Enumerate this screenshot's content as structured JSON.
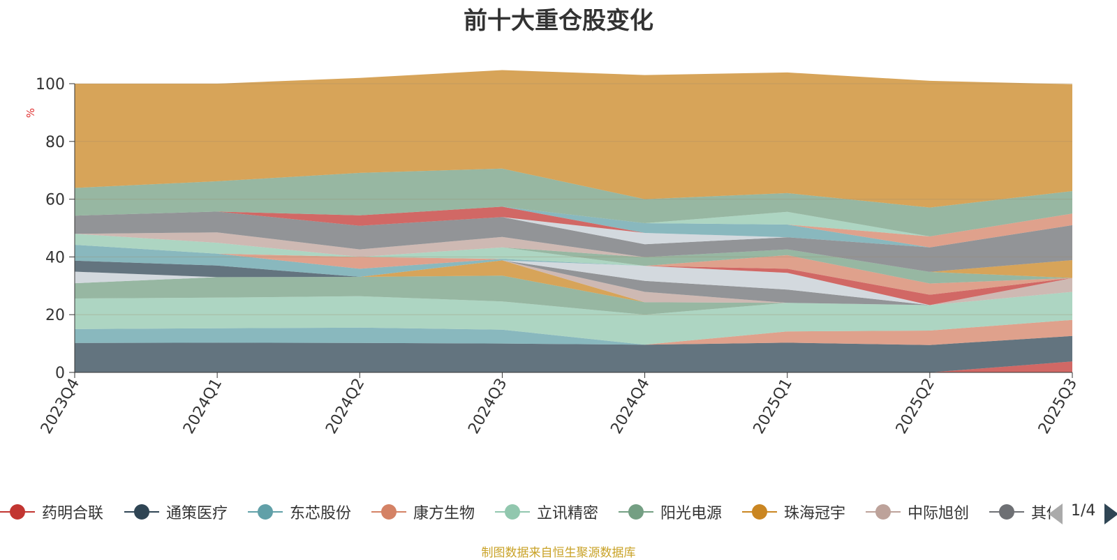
{
  "title": "前十大重仓股变化",
  "source": "制图数据来自恒生聚源数据库",
  "pager": {
    "text": "1/4"
  },
  "legend": [
    {
      "name": "药明合联",
      "color": "#c23531"
    },
    {
      "name": "通策医疗",
      "color": "#2f4554"
    },
    {
      "name": "东芯股份",
      "color": "#61a0a8"
    },
    {
      "name": "康方生物",
      "color": "#d48265"
    },
    {
      "name": "立讯精密",
      "color": "#91c7ae"
    },
    {
      "name": "阳光电源",
      "color": "#749f83"
    },
    {
      "name": "珠海冠宇",
      "color": "#ca8622"
    },
    {
      "name": "中际旭创",
      "color": "#bda29a"
    },
    {
      "name": "其他",
      "color": "#6e7074"
    }
  ],
  "chart_data": {
    "type": "area",
    "stacked": true,
    "title": "前十大重仓股变化",
    "ylabel": "%",
    "ylim": [
      0,
      100
    ],
    "yticks": [
      "0",
      "20",
      "40",
      "60",
      "80",
      "100"
    ],
    "categories": [
      "2023Q4",
      "2024Q1",
      "2024Q2",
      "2024Q3",
      "2024Q4",
      "2025Q1",
      "2025Q2",
      "2025Q3"
    ],
    "bands": [
      {
        "color": "#c23531",
        "values": [
          0,
          0,
          0,
          0,
          0,
          0,
          0,
          3.8
        ]
      },
      {
        "color": "#2f4554",
        "values": [
          10.2,
          10.3,
          10.2,
          10.0,
          9.6,
          10.3,
          9.5,
          8.8
        ]
      },
      {
        "color": "#61a0a8",
        "values": [
          4.8,
          5.0,
          5.3,
          4.8,
          0,
          0,
          0,
          0
        ]
      },
      {
        "color": "#d48265",
        "values": [
          0,
          0,
          0,
          0,
          0,
          3.9,
          5.0,
          5.6
        ]
      },
      {
        "color": "#91c7ae",
        "values": [
          10.6,
          10.6,
          10.9,
          9.8,
          10.4,
          9.9,
          8.8,
          9.7
        ]
      },
      {
        "color": "#749f83",
        "values": [
          5.3,
          7.1,
          6.7,
          8.9,
          4.3,
          0,
          0,
          0
        ]
      },
      {
        "color": "#ca8622",
        "values": [
          0,
          0,
          0,
          5.3,
          0,
          0,
          0,
          0
        ]
      },
      {
        "color": "#bda29a",
        "values": [
          0,
          0,
          0,
          0,
          3.6,
          0,
          0,
          4.8
        ]
      },
      {
        "color": "#6e7074",
        "values": [
          0,
          0,
          0,
          0,
          3.8,
          4.6,
          0,
          0
        ]
      },
      {
        "color": "#546570",
        "values": [
          0,
          0,
          0,
          0,
          0,
          0,
          0,
          0
        ]
      },
      {
        "color": "#c4ccd3",
        "values": [
          4.0,
          0,
          0,
          0,
          5.2,
          5.8,
          0,
          0
        ]
      },
      {
        "color": "#c23531",
        "values": [
          0,
          0,
          0,
          0,
          0,
          1.4,
          3.6,
          0
        ]
      },
      {
        "color": "#2f4554",
        "values": [
          3.8,
          4.0,
          0,
          0,
          0,
          0,
          0,
          0
        ]
      },
      {
        "color": "#61a0a8",
        "values": [
          5.5,
          4.1,
          2.8,
          0.5,
          0,
          0,
          0,
          0
        ]
      },
      {
        "color": "#d48265",
        "values": [
          0,
          0,
          4.1,
          0,
          0,
          4.7,
          3.9,
          0
        ]
      },
      {
        "color": "#91c7ae",
        "values": [
          3.8,
          3.8,
          0,
          4.0,
          0,
          0,
          0,
          0
        ]
      },
      {
        "color": "#749f83",
        "values": [
          0,
          0,
          0,
          0,
          3.0,
          2.0,
          4.0,
          0
        ]
      },
      {
        "color": "#ca8622",
        "values": [
          0,
          0,
          0,
          0,
          0,
          0,
          0,
          6.2
        ]
      },
      {
        "color": "#bda29a",
        "values": [
          0,
          3.6,
          2.6,
          3.6,
          0,
          0,
          0,
          0
        ]
      },
      {
        "color": "#6e7074",
        "values": [
          6.3,
          7.2,
          8.2,
          6.9,
          4.5,
          4.2,
          8.5,
          12.1
        ]
      },
      {
        "color": "#c4ccd3",
        "values": [
          0,
          0,
          0,
          0,
          3.9,
          0,
          0,
          0
        ]
      },
      {
        "color": "#c23531",
        "values": [
          0,
          0,
          3.6,
          3.6,
          0,
          0,
          0,
          0
        ]
      },
      {
        "color": "#61a0a8",
        "values": [
          0,
          0,
          0,
          0,
          3.4,
          4.4,
          0,
          0
        ]
      },
      {
        "color": "#d48265",
        "values": [
          0,
          0,
          0,
          0,
          0,
          0,
          3.8,
          4.0
        ]
      },
      {
        "color": "#91c7ae",
        "values": [
          0,
          0,
          0,
          0,
          0,
          4.4,
          0,
          0
        ]
      },
      {
        "color": "#749f83",
        "values": [
          9.6,
          10.5,
          14.7,
          13.2,
          8.3,
          6.5,
          10.0,
          7.8
        ]
      },
      {
        "color": "#ca8622",
        "values": [
          36.1,
          33.8,
          32.9,
          34.1,
          43.0,
          41.8,
          43.9,
          37.0
        ]
      }
    ]
  }
}
